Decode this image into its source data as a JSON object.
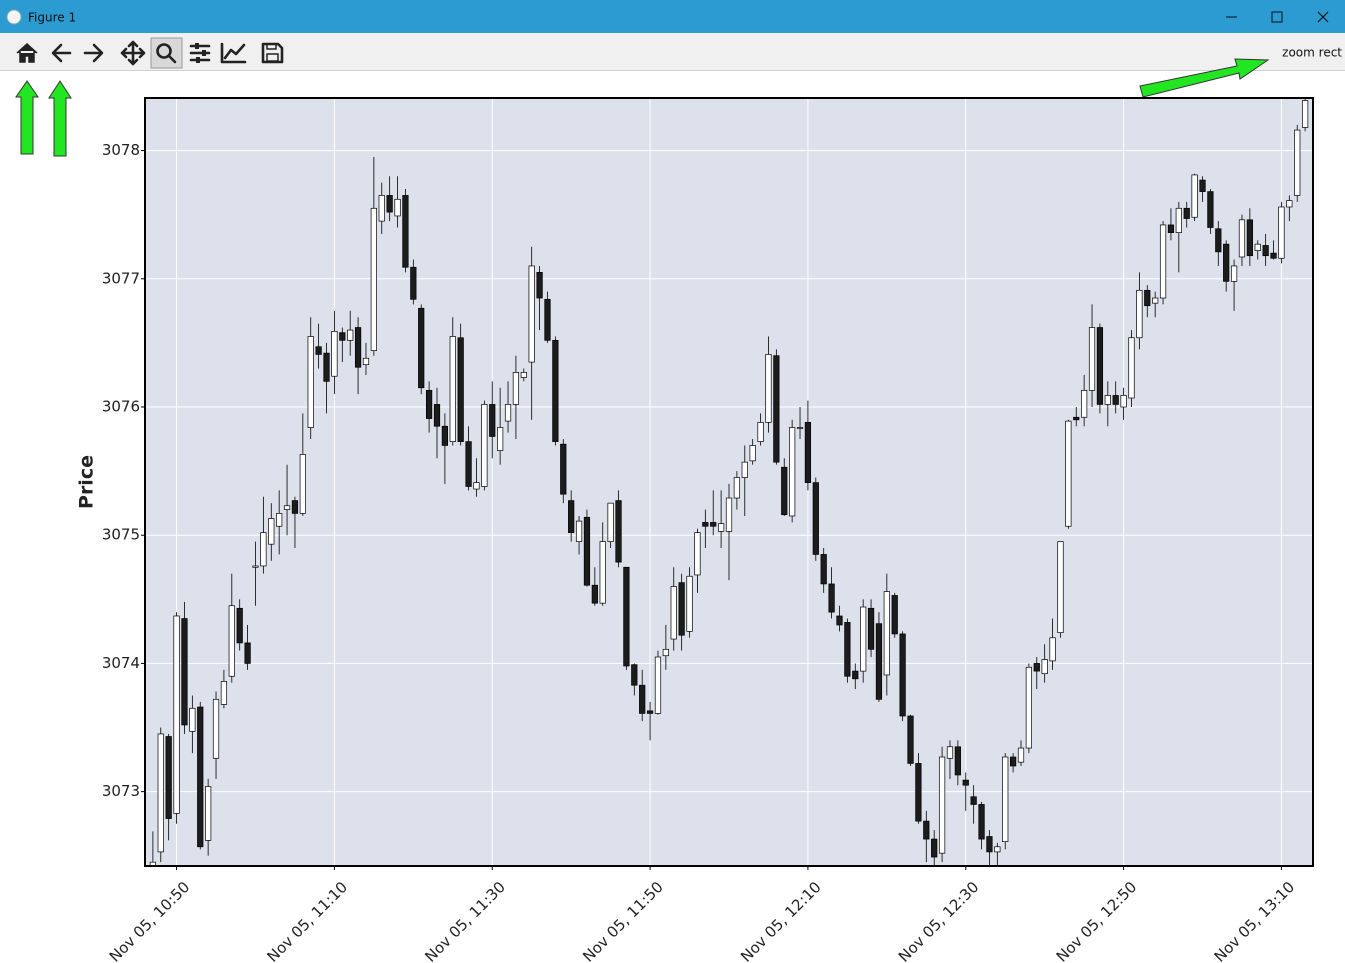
{
  "window": {
    "title": "Figure 1"
  },
  "toolbar": {
    "message": "zoom rect"
  },
  "chart_data": {
    "type": "candlestick",
    "ylabel": "Price",
    "x": [
      "Nov 05, 10:47",
      "Nov 05, 10:48",
      "Nov 05, 10:49",
      "Nov 05, 10:50",
      "Nov 05, 10:51",
      "Nov 05, 10:52",
      "Nov 05, 10:53",
      "Nov 05, 10:54",
      "Nov 05, 10:55",
      "Nov 05, 10:56",
      "Nov 05, 10:57",
      "Nov 05, 10:58",
      "Nov 05, 10:59",
      "Nov 05, 11:00",
      "Nov 05, 11:01",
      "Nov 05, 11:02",
      "Nov 05, 11:03",
      "Nov 05, 11:04",
      "Nov 05, 11:05",
      "Nov 05, 11:06",
      "Nov 05, 11:07",
      "Nov 05, 11:08",
      "Nov 05, 11:09",
      "Nov 05, 11:10",
      "Nov 05, 11:11",
      "Nov 05, 11:12",
      "Nov 05, 11:13",
      "Nov 05, 11:14",
      "Nov 05, 11:15",
      "Nov 05, 11:16",
      "Nov 05, 11:17",
      "Nov 05, 11:18",
      "Nov 05, 11:19",
      "Nov 05, 11:20",
      "Nov 05, 11:21",
      "Nov 05, 11:22",
      "Nov 05, 11:23",
      "Nov 05, 11:24",
      "Nov 05, 11:25",
      "Nov 05, 11:26",
      "Nov 05, 11:27",
      "Nov 05, 11:28",
      "Nov 05, 11:29",
      "Nov 05, 11:30",
      "Nov 05, 11:31",
      "Nov 05, 11:32",
      "Nov 05, 11:33",
      "Nov 05, 11:34",
      "Nov 05, 11:35",
      "Nov 05, 11:36",
      "Nov 05, 11:37",
      "Nov 05, 11:38",
      "Nov 05, 11:39",
      "Nov 05, 11:40",
      "Nov 05, 11:41",
      "Nov 05, 11:42",
      "Nov 05, 11:43",
      "Nov 05, 11:44",
      "Nov 05, 11:45",
      "Nov 05, 11:46",
      "Nov 05, 11:47",
      "Nov 05, 11:48",
      "Nov 05, 11:49",
      "Nov 05, 11:50",
      "Nov 05, 11:51",
      "Nov 05, 11:52",
      "Nov 05, 11:53",
      "Nov 05, 11:54",
      "Nov 05, 11:55",
      "Nov 05, 11:56",
      "Nov 05, 11:57",
      "Nov 05, 11:58",
      "Nov 05, 11:59",
      "Nov 05, 12:00",
      "Nov 05, 12:01",
      "Nov 05, 12:02",
      "Nov 05, 12:03",
      "Nov 05, 12:04",
      "Nov 05, 12:05",
      "Nov 05, 12:06",
      "Nov 05, 12:07",
      "Nov 05, 12:08",
      "Nov 05, 12:09",
      "Nov 05, 12:10",
      "Nov 05, 12:11",
      "Nov 05, 12:12",
      "Nov 05, 12:13",
      "Nov 05, 12:14",
      "Nov 05, 12:15",
      "Nov 05, 12:16",
      "Nov 05, 12:17",
      "Nov 05, 12:18",
      "Nov 05, 12:19",
      "Nov 05, 12:20",
      "Nov 05, 12:21",
      "Nov 05, 12:22",
      "Nov 05, 12:23",
      "Nov 05, 12:24",
      "Nov 05, 12:25",
      "Nov 05, 12:26",
      "Nov 05, 12:27",
      "Nov 05, 12:28",
      "Nov 05, 12:29",
      "Nov 05, 12:30",
      "Nov 05, 12:31",
      "Nov 05, 12:32",
      "Nov 05, 12:33",
      "Nov 05, 12:34",
      "Nov 05, 12:35",
      "Nov 05, 12:36",
      "Nov 05, 12:37",
      "Nov 05, 12:38",
      "Nov 05, 12:39",
      "Nov 05, 12:40",
      "Nov 05, 12:41",
      "Nov 05, 12:42",
      "Nov 05, 12:43",
      "Nov 05, 12:44",
      "Nov 05, 12:45",
      "Nov 05, 12:46",
      "Nov 05, 12:47",
      "Nov 05, 12:48",
      "Nov 05, 12:49",
      "Nov 05, 12:50",
      "Nov 05, 12:51",
      "Nov 05, 12:52",
      "Nov 05, 12:53",
      "Nov 05, 12:54",
      "Nov 05, 12:55",
      "Nov 05, 12:56",
      "Nov 05, 12:57",
      "Nov 05, 12:58",
      "Nov 05, 12:59",
      "Nov 05, 13:00",
      "Nov 05, 13:01",
      "Nov 05, 13:02",
      "Nov 05, 13:03",
      "Nov 05, 13:04",
      "Nov 05, 13:05",
      "Nov 05, 13:06",
      "Nov 05, 13:07",
      "Nov 05, 13:08",
      "Nov 05, 13:09",
      "Nov 05, 13:10",
      "Nov 05, 13:11",
      "Nov 05, 13:12",
      "Nov 05, 13:13"
    ],
    "open": [
      3072.42,
      3072.53,
      3073.43,
      3072.83,
      3074.35,
      3073.47,
      3073.66,
      3072.62,
      3073.26,
      3073.68,
      3073.9,
      3074.43,
      3074.16,
      3074.75,
      3074.76,
      3074.93,
      3075.07,
      3075.2,
      3075.27,
      3075.17,
      3075.84,
      3076.47,
      3076.42,
      3076.24,
      3076.58,
      3076.52,
      3076.62,
      3076.33,
      3076.44,
      3077.45,
      3077.65,
      3077.49,
      3077.65,
      3077.09,
      3076.77,
      3076.13,
      3076.02,
      3075.85,
      3075.73,
      3076.54,
      3075.73,
      3075.36,
      3075.38,
      3076.02,
      3075.66,
      3075.89,
      3076.02,
      3076.23,
      3076.35,
      3077.05,
      3076.84,
      3076.52,
      3075.71,
      3075.27,
      3074.95,
      3075.14,
      3074.61,
      3074.47,
      3074.95,
      3075.27,
      3074.75,
      3073.99,
      3073.83,
      3073.63,
      3073.61,
      3074.06,
      3074.19,
      3074.63,
      3074.25,
      3074.69,
      3075.1,
      3075.1,
      3075.03,
      3075.03,
      3075.29,
      3075.45,
      3075.58,
      3075.73,
      3075.88,
      3076.4,
      3075.53,
      3075.15,
      3075.84,
      3075.88,
      3075.41,
      3074.85,
      3074.62,
      3074.37,
      3074.32,
      3073.94,
      3073.94,
      3074.43,
      3074.31,
      3073.91,
      3074.53,
      3074.23,
      3073.59,
      3073.22,
      3072.77,
      3072.63,
      3072.52,
      3073.26,
      3073.35,
      3073.09,
      3072.96,
      3072.9,
      3072.65,
      3072.53,
      3072.61,
      3073.27,
      3073.23,
      3073.34,
      3074.0,
      3073.92,
      3074.02,
      3074.24,
      3075.07,
      3075.92,
      3075.92,
      3076.13,
      3076.62,
      3076.02,
      3076.09,
      3076.0,
      3076.07,
      3076.54,
      3076.91,
      3076.81,
      3076.85,
      3077.42,
      3077.36,
      3077.55,
      3077.48,
      3077.77,
      3077.68,
      3077.39,
      3077.27,
      3076.98,
      3077.17,
      3077.46,
      3077.22,
      3077.26,
      3077.2,
      3077.16,
      3077.56,
      3077.65,
      3078.18
    ],
    "high": [
      3072.69,
      3073.5,
      3073.45,
      3074.4,
      3074.48,
      3073.75,
      3073.7,
      3073.1,
      3073.78,
      3073.95,
      3074.7,
      3074.5,
      3074.3,
      3074.95,
      3075.3,
      3075.25,
      3075.35,
      3075.55,
      3075.3,
      3075.95,
      3076.7,
      3076.65,
      3076.5,
      3076.75,
      3076.62,
      3076.75,
      3076.7,
      3076.5,
      3077.95,
      3077.75,
      3077.8,
      3077.8,
      3077.7,
      3077.15,
      3076.8,
      3076.2,
      3076.15,
      3075.95,
      3076.7,
      3076.65,
      3075.85,
      3075.6,
      3076.05,
      3076.2,
      3076.15,
      3076.2,
      3076.4,
      3076.3,
      3077.25,
      3077.1,
      3076.9,
      3076.55,
      3075.75,
      3075.35,
      3075.15,
      3075.2,
      3074.75,
      3075.1,
      3075.25,
      3075.35,
      3074.75,
      3074.0,
      3073.95,
      3073.7,
      3074.1,
      3074.3,
      3074.75,
      3074.7,
      3074.75,
      3075.05,
      3075.2,
      3075.35,
      3075.35,
      3075.4,
      3075.5,
      3075.7,
      3075.75,
      3075.95,
      3076.55,
      3076.45,
      3075.6,
      3075.9,
      3076.0,
      3076.05,
      3075.45,
      3074.9,
      3074.75,
      3074.45,
      3074.35,
      3074.0,
      3074.5,
      3074.5,
      3074.4,
      3074.7,
      3074.55,
      3074.25,
      3073.6,
      3073.3,
      3072.85,
      3072.7,
      3073.35,
      3073.4,
      3073.4,
      3073.15,
      3073.05,
      3072.92,
      3072.7,
      3072.6,
      3073.3,
      3073.3,
      3073.4,
      3074.0,
      3074.05,
      3074.15,
      3074.35,
      3074.95,
      3075.9,
      3076.0,
      3076.25,
      3076.8,
      3076.65,
      3076.2,
      3076.2,
      3076.15,
      3076.6,
      3077.05,
      3076.95,
      3076.9,
      3077.45,
      3077.55,
      3077.6,
      3077.6,
      3077.82,
      3077.8,
      3077.7,
      3077.45,
      3077.3,
      3077.15,
      3077.5,
      3077.55,
      3077.3,
      3077.35,
      3077.3,
      3077.6,
      3077.65,
      3078.2,
      3078.41
    ],
    "low": [
      3072.42,
      3072.45,
      3072.62,
      3072.75,
      3073.45,
      3073.3,
      3072.55,
      3072.5,
      3073.1,
      3073.65,
      3073.85,
      3074.1,
      3073.95,
      3074.45,
      3074.7,
      3074.8,
      3074.85,
      3075.0,
      3074.9,
      3075.15,
      3075.75,
      3076.3,
      3075.95,
      3076.1,
      3076.35,
      3076.4,
      3076.1,
      3076.25,
      3076.4,
      3077.35,
      3077.45,
      3077.4,
      3077.05,
      3076.8,
      3076.1,
      3075.8,
      3075.6,
      3075.4,
      3075.7,
      3075.7,
      3075.35,
      3075.3,
      3075.35,
      3075.6,
      3075.55,
      3075.8,
      3075.75,
      3076.2,
      3075.9,
      3076.6,
      3076.5,
      3075.7,
      3075.25,
      3074.95,
      3074.85,
      3074.6,
      3074.45,
      3074.45,
      3074.9,
      3074.75,
      3073.95,
      3073.75,
      3073.55,
      3073.4,
      3073.6,
      3073.95,
      3074.1,
      3074.1,
      3074.2,
      3074.55,
      3074.9,
      3075.0,
      3074.9,
      3074.65,
      3075.2,
      3075.15,
      3075.55,
      3075.7,
      3075.8,
      3075.55,
      3075.15,
      3075.1,
      3075.75,
      3075.35,
      3074.8,
      3074.55,
      3074.35,
      3074.25,
      3073.85,
      3073.8,
      3073.85,
      3074.05,
      3073.7,
      3073.75,
      3074.2,
      3073.55,
      3073.2,
      3072.75,
      3072.45,
      3072.42,
      3072.45,
      3073.1,
      3073.05,
      3072.85,
      3072.75,
      3072.55,
      3072.42,
      3072.42,
      3072.55,
      3073.15,
      3073.2,
      3073.3,
      3073.8,
      3073.85,
      3073.95,
      3074.2,
      3075.05,
      3075.85,
      3075.85,
      3076.0,
      3075.95,
      3075.85,
      3075.95,
      3075.9,
      3076.0,
      3076.45,
      3076.7,
      3076.7,
      3076.8,
      3077.3,
      3077.05,
      3077.4,
      3077.45,
      3077.6,
      3077.35,
      3077.1,
      3076.9,
      3076.75,
      3077.1,
      3077.1,
      3077.15,
      3077.1,
      3077.15,
      3077.12,
      3077.45,
      3077.6,
      3078.15
    ],
    "close": [
      3072.45,
      3073.45,
      3072.79,
      3074.37,
      3073.52,
      3073.65,
      3072.57,
      3073.04,
      3073.72,
      3073.86,
      3074.45,
      3074.16,
      3074.0,
      3074.76,
      3075.02,
      3075.13,
      3075.17,
      3075.23,
      3075.17,
      3075.63,
      3076.55,
      3076.41,
      3076.2,
      3076.59,
      3076.52,
      3076.6,
      3076.31,
      3076.38,
      3077.55,
      3077.65,
      3077.52,
      3077.62,
      3077.09,
      3076.84,
      3076.15,
      3075.91,
      3075.85,
      3075.7,
      3076.55,
      3075.73,
      3075.38,
      3075.41,
      3076.02,
      3075.77,
      3075.84,
      3076.02,
      3076.27,
      3076.27,
      3077.1,
      3076.85,
      3076.52,
      3075.73,
      3075.32,
      3075.02,
      3075.11,
      3074.61,
      3074.47,
      3074.95,
      3075.25,
      3074.79,
      3073.98,
      3073.83,
      3073.61,
      3073.61,
      3074.05,
      3074.11,
      3074.6,
      3074.22,
      3074.68,
      3075.02,
      3075.07,
      3075.07,
      3075.09,
      3075.29,
      3075.45,
      3075.57,
      3075.7,
      3075.88,
      3076.41,
      3075.57,
      3075.16,
      3075.84,
      3075.84,
      3075.41,
      3074.85,
      3074.62,
      3074.4,
      3074.3,
      3073.9,
      3073.88,
      3074.44,
      3074.11,
      3073.72,
      3074.56,
      3074.23,
      3073.59,
      3073.22,
      3072.77,
      3072.63,
      3072.49,
      3073.27,
      3073.35,
      3073.13,
      3073.05,
      3072.9,
      3072.63,
      3072.53,
      3072.57,
      3073.27,
      3073.2,
      3073.34,
      3073.97,
      3073.94,
      3074.03,
      3074.2,
      3074.95,
      3075.89,
      3075.9,
      3076.13,
      3076.62,
      3076.02,
      3076.09,
      3076.02,
      3076.09,
      3076.54,
      3076.91,
      3076.79,
      3076.85,
      3077.42,
      3077.36,
      3077.55,
      3077.47,
      3077.81,
      3077.68,
      3077.4,
      3077.21,
      3076.98,
      3077.1,
      3077.46,
      3077.18,
      3077.27,
      3077.18,
      3077.16,
      3077.56,
      3077.61,
      3078.16,
      3078.39
    ],
    "up_color": "#ffffff",
    "down_color": "#1c1c1c",
    "edge_color": "#000000",
    "background": "#dce1ec",
    "grid": true,
    "xlim": [
      "Nov 05, 10:46",
      "Nov 05, 13:14"
    ],
    "xticks": [
      "Nov 05, 10:50",
      "Nov 05, 11:10",
      "Nov 05, 11:30",
      "Nov 05, 11:50",
      "Nov 05, 12:10",
      "Nov 05, 12:30",
      "Nov 05, 12:50",
      "Nov 05, 13:10"
    ],
    "ylim": [
      3072.42,
      3078.41
    ],
    "yticks": [
      3073,
      3074,
      3075,
      3076,
      3077,
      3078
    ]
  }
}
